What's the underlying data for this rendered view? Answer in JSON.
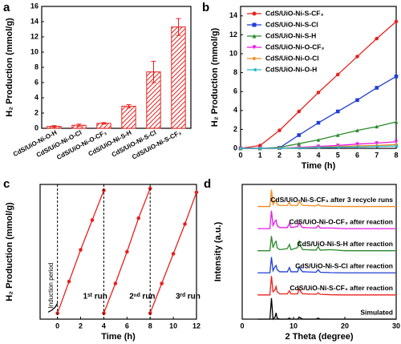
{
  "chart_data": [
    {
      "type": "bar",
      "panel_label": "a",
      "y_label": "H₂ Production (mmol/g)",
      "categories": [
        "CdS/UiO-Ni-O-H",
        "CdS/UiO-Ni-O-Cl",
        "CdS/UiO-Ni-O-CF₃",
        "CdS/UiO-Ni-S-H",
        "CdS/UiO-Ni-S-Cl",
        "CdS/UiO-Ni-S-CF₃"
      ],
      "values": [
        0.25,
        0.4,
        0.65,
        2.9,
        7.4,
        13.3
      ],
      "errors": [
        0.1,
        0.15,
        0.1,
        0.2,
        1.4,
        1.1
      ],
      "color": "#e8211d",
      "ylim": [
        0,
        16
      ],
      "yticks": [
        0,
        2,
        4,
        6,
        8,
        10,
        12,
        14,
        16
      ]
    },
    {
      "type": "line",
      "panel_label": "b",
      "x_label": "Time (h)",
      "y_label": "H₂ Production (mmol/g)",
      "x": [
        0,
        1,
        2,
        3,
        4,
        5,
        6,
        7,
        8
      ],
      "xlim": [
        0,
        8
      ],
      "xticks": [
        0,
        1,
        2,
        3,
        4,
        5,
        6,
        7,
        8
      ],
      "ylim": [
        0,
        15
      ],
      "yticks": [
        0,
        2,
        4,
        6,
        8,
        10,
        12,
        14
      ],
      "legend": "upper left",
      "series": [
        {
          "name": "CdS/UiO-Ni-S-CF₃",
          "color": "#e8211d",
          "marker": "circle",
          "values": [
            0,
            0.3,
            1.9,
            3.9,
            5.9,
            7.8,
            9.7,
            11.6,
            13.4
          ]
        },
        {
          "name": "CdS/UiO-Ni-S-Cl",
          "color": "#1f3fd6",
          "marker": "square",
          "values": [
            0,
            0,
            0.05,
            1.4,
            2.7,
            3.9,
            5.1,
            6.4,
            7.6
          ]
        },
        {
          "name": "CdS/UiO-Ni-S-H",
          "color": "#2a8a2a",
          "marker": "triangle-up",
          "values": [
            0,
            0,
            0.1,
            0.5,
            0.9,
            1.4,
            1.9,
            2.3,
            2.8
          ]
        },
        {
          "name": "CdS/UiO-Ni-O-CF₃",
          "color": "#e619e6",
          "marker": "triangle-down",
          "values": [
            0,
            0,
            0,
            0.1,
            0.2,
            0.3,
            0.45,
            0.55,
            0.7
          ]
        },
        {
          "name": "CdS/UiO-Ni-O-Cl",
          "color": "#f08a1a",
          "marker": "diamond",
          "values": [
            0,
            0,
            0,
            0.05,
            0.1,
            0.2,
            0.25,
            0.3,
            0.4
          ]
        },
        {
          "name": "CdS/UiO-Ni-O-H",
          "color": "#2ab5c9",
          "marker": "triangle-left",
          "values": [
            0,
            0,
            0,
            0.03,
            0.08,
            0.12,
            0.15,
            0.2,
            0.25
          ]
        }
      ]
    },
    {
      "type": "line",
      "panel_label": "c",
      "x_label": "Time (h)",
      "y_label": "H₂ Production (mmol/g)",
      "xlim": [
        -1.5,
        12
      ],
      "xticks": [
        0,
        2,
        4,
        6,
        8,
        10,
        12
      ],
      "ylim": [
        -0.3,
        6.5
      ],
      "series": [
        {
          "name": "Induction period",
          "color": "#000000",
          "x": [
            -0.8,
            -0.5,
            -0.2,
            0
          ],
          "values": [
            0.05,
            0.15,
            0.3,
            0.5
          ]
        },
        {
          "name": "1ˢᵗ run",
          "color": "#e8211d",
          "marker": "circle",
          "x": [
            0,
            1,
            2,
            3,
            4
          ],
          "values": [
            0,
            1.6,
            3.2,
            4.7,
            6.2
          ]
        },
        {
          "name": "2ⁿᵈ run",
          "color": "#e8211d",
          "marker": "circle",
          "x": [
            4,
            5,
            6,
            7,
            8
          ],
          "values": [
            0,
            1.5,
            3.1,
            4.8,
            6.3
          ]
        },
        {
          "name": "3ʳᵈ run",
          "color": "#e8211d",
          "marker": "circle",
          "x": [
            8,
            9,
            10,
            11,
            12
          ],
          "values": [
            0,
            1.5,
            3.0,
            4.5,
            6.1
          ]
        }
      ]
    },
    {
      "type": "line",
      "panel_label": "d",
      "x_label": "2 Theta (degree)",
      "y_label": "Intensity (a.u.)",
      "x": [
        3,
        5.4,
        5.7,
        6.0,
        6.4,
        6.6,
        6.8,
        7.3,
        8.8,
        9.2,
        9.5,
        10.8,
        11.1,
        11.4,
        11.8,
        12.2,
        14.4,
        14.8,
        15.2,
        17.2,
        20,
        24,
        30
      ],
      "xlim": [
        0,
        30
      ],
      "xticks": [
        0,
        10,
        20,
        30
      ],
      "ylim": [
        0,
        6.4
      ],
      "series": [
        {
          "name": "Simulated",
          "color": "#000000",
          "values": [
            0,
            0,
            1.0,
            0,
            0.1,
            0.3,
            0.05,
            0,
            0,
            0.05,
            0,
            0,
            0.1,
            0.05,
            0,
            0,
            0,
            0.05,
            0,
            0,
            0,
            0,
            0
          ]
        },
        {
          "name": "CdS/UiO-Ni-S-CF₃ after reaction",
          "color": "#e8211d",
          "values": [
            1.15,
            1.15,
            2.05,
            1.3,
            1.4,
            1.55,
            1.3,
            1.2,
            1.2,
            1.35,
            1.2,
            1.2,
            1.45,
            1.3,
            1.2,
            1.2,
            1.18,
            1.25,
            1.18,
            1.16,
            1.15,
            1.15,
            1.15
          ]
        },
        {
          "name": "CdS/UiO-Ni-S-Cl after reaction",
          "color": "#1f3fd6",
          "values": [
            2.2,
            2.2,
            2.95,
            2.3,
            2.5,
            2.55,
            2.35,
            2.25,
            2.25,
            2.45,
            2.25,
            2.25,
            2.5,
            2.35,
            2.25,
            2.25,
            2.23,
            2.35,
            2.23,
            2.21,
            2.2,
            2.2,
            2.2
          ]
        },
        {
          "name": "CdS/UiO-Ni-S-H after reaction",
          "color": "#2a8a2a",
          "values": [
            3.25,
            3.25,
            3.95,
            3.4,
            3.65,
            3.7,
            3.4,
            3.3,
            3.35,
            3.55,
            3.3,
            3.4,
            3.7,
            3.45,
            3.3,
            3.3,
            3.28,
            3.45,
            3.28,
            3.3,
            3.25,
            3.25,
            3.25
          ]
        },
        {
          "name": "CdS/UiO-Ni-O-CF₃ after reaction",
          "color": "#e619e6",
          "values": [
            4.3,
            4.3,
            5.15,
            4.45,
            4.65,
            4.7,
            4.45,
            4.35,
            4.35,
            4.55,
            4.35,
            4.4,
            4.6,
            4.45,
            4.35,
            4.35,
            4.33,
            4.45,
            4.33,
            4.33,
            4.3,
            4.3,
            4.3
          ]
        },
        {
          "name": "CdS/UiO-Ni-S-CF₃ after 3 recycle runs",
          "color": "#f08a1a",
          "values": [
            5.35,
            5.35,
            6.15,
            5.45,
            5.6,
            5.7,
            5.45,
            5.4,
            5.4,
            5.55,
            5.4,
            5.4,
            5.6,
            5.5,
            5.4,
            5.4,
            5.38,
            5.45,
            5.38,
            5.36,
            5.35,
            5.35,
            5.35
          ]
        }
      ]
    }
  ]
}
